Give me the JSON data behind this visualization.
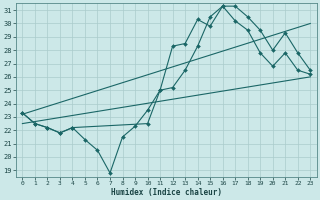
{
  "xlabel": "Humidex (Indice chaleur)",
  "bg_color": "#cce8e8",
  "grid_color": "#aacccc",
  "line_color": "#1a6666",
  "xlim": [
    -0.5,
    23.5
  ],
  "ylim": [
    18.5,
    31.5
  ],
  "xticks": [
    0,
    1,
    2,
    3,
    4,
    5,
    6,
    7,
    8,
    9,
    10,
    11,
    12,
    13,
    14,
    15,
    16,
    17,
    18,
    19,
    20,
    21,
    22,
    23
  ],
  "yticks": [
    19,
    20,
    21,
    22,
    23,
    24,
    25,
    26,
    27,
    28,
    29,
    30,
    31
  ],
  "series": [
    {
      "x": [
        0,
        1,
        2,
        3,
        4,
        5,
        6,
        7,
        8,
        9,
        10,
        11,
        12,
        13,
        14,
        15,
        16,
        17,
        18,
        19,
        20,
        21,
        22,
        23
      ],
      "y": [
        23.3,
        22.5,
        22.2,
        21.8,
        22.2,
        21.3,
        20.5,
        18.8,
        21.5,
        22.3,
        23.5,
        25.0,
        25.2,
        26.5,
        28.3,
        30.5,
        31.3,
        30.2,
        29.5,
        27.8,
        26.8,
        27.8,
        26.5,
        26.2
      ],
      "has_markers": true
    },
    {
      "x": [
        0,
        1,
        2,
        3,
        4,
        10,
        11,
        12,
        13,
        14,
        15,
        16,
        17,
        18,
        19,
        20,
        21,
        22,
        23
      ],
      "y": [
        23.3,
        22.5,
        22.2,
        21.8,
        22.2,
        22.5,
        25.0,
        28.3,
        28.5,
        30.3,
        29.8,
        31.3,
        31.3,
        30.5,
        29.5,
        28.0,
        29.3,
        27.8,
        26.5
      ],
      "has_markers": true
    },
    {
      "x": [
        0,
        23
      ],
      "y": [
        23.2,
        30.0
      ],
      "has_markers": false
    },
    {
      "x": [
        0,
        23
      ],
      "y": [
        22.5,
        26.0
      ],
      "has_markers": false
    }
  ]
}
